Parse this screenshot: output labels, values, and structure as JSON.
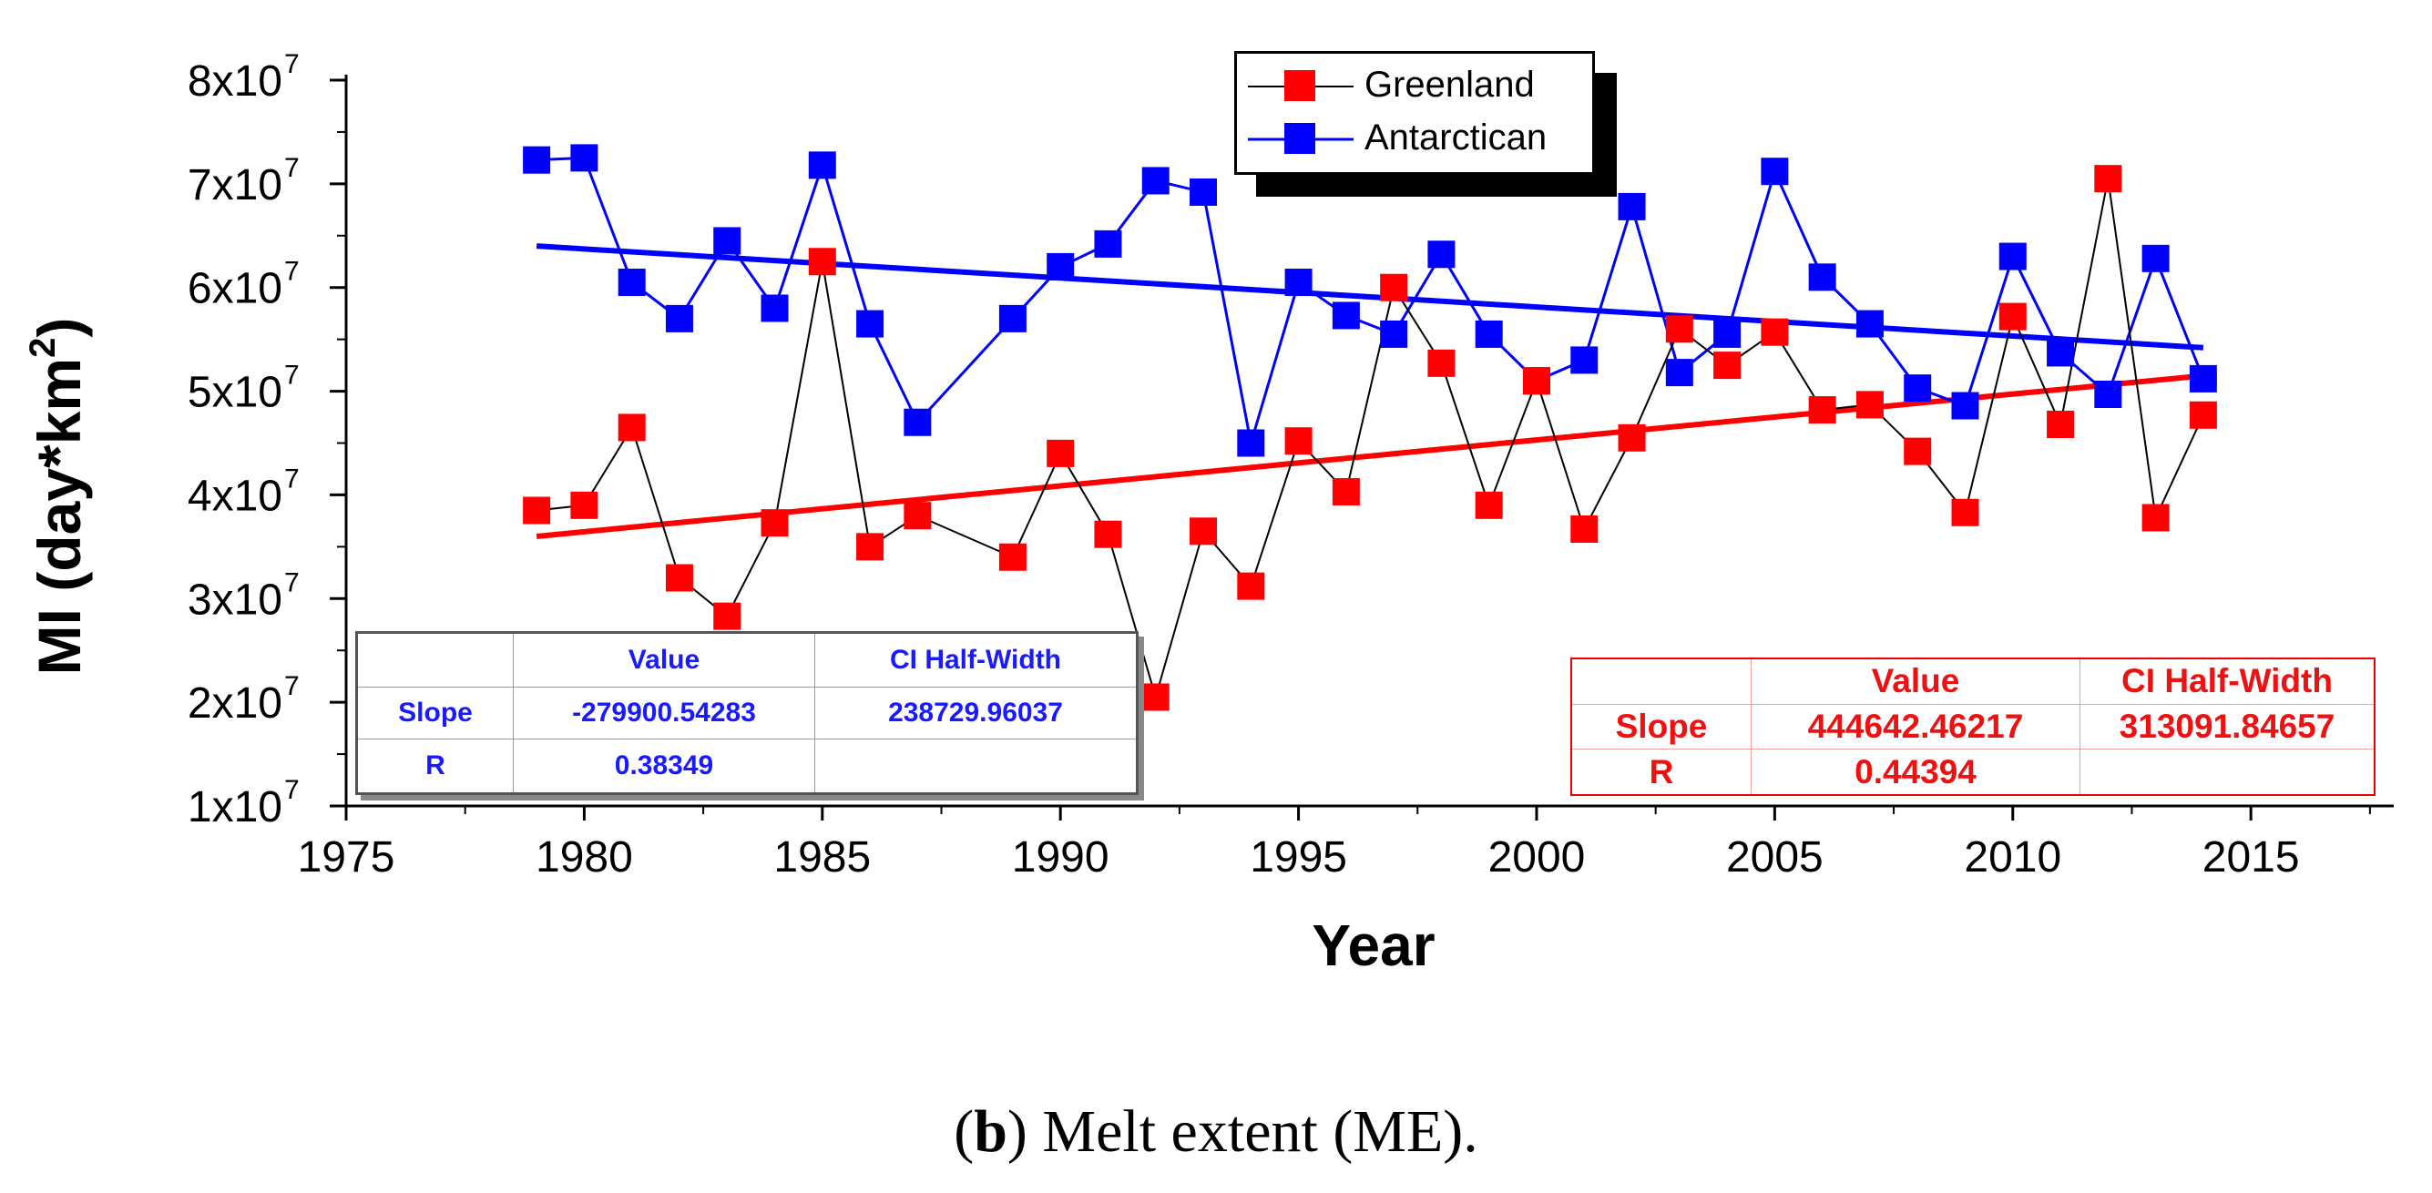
{
  "chart_data": {
    "type": "line",
    "title": "",
    "xlabel": "Year",
    "ylabel": "MI (day*km²)",
    "xlim": [
      1975,
      2018
    ],
    "ylim": [
      10000000,
      80000000
    ],
    "x_ticks": [
      1975,
      1980,
      1985,
      1990,
      1995,
      2000,
      2005,
      2010,
      2015
    ],
    "x_tick_labels": [
      "1975",
      "1980",
      "1985",
      "1990",
      "1995",
      "2000",
      "2005",
      "2010",
      "2015"
    ],
    "y_ticks": [
      10000000,
      20000000,
      30000000,
      40000000,
      50000000,
      60000000,
      70000000,
      80000000
    ],
    "y_tick_labels": [
      "1x10",
      "2x10",
      "3x10",
      "4x10",
      "5x10",
      "6x10",
      "7x10",
      "8x10"
    ],
    "y_tick_exponent": "7",
    "x": [
      1979,
      1980,
      1981,
      1982,
      1983,
      1984,
      1985,
      1986,
      1987,
      1989,
      1990,
      1991,
      1992,
      1993,
      1994,
      1995,
      1996,
      1997,
      1998,
      1999,
      2000,
      2001,
      2002,
      2003,
      2004,
      2005,
      2006,
      2007,
      2008,
      2009,
      2010,
      2011,
      2012,
      2013,
      2014
    ],
    "series": [
      {
        "name": "Greenland",
        "color": "#ff0000",
        "line_color": "#000000",
        "values": [
          38.5,
          39,
          46.5,
          32,
          28.3,
          37.3,
          62.5,
          35,
          38,
          34,
          44,
          36.2,
          20.5,
          36.5,
          31.2,
          45.2,
          40.3,
          60,
          52.7,
          39,
          51,
          36.7,
          45.5,
          56,
          52.5,
          55.7,
          48.2,
          48.7,
          44.2,
          38.3,
          57.2,
          46.8,
          70.5,
          37.8,
          47.7
        ],
        "value_scale": 1000000,
        "trend": {
          "start": [
            1979,
            36000000
          ],
          "end": [
            2014,
            51500000
          ]
        }
      },
      {
        "name": "Antarctican",
        "color": "#0000ff",
        "line_color": "#0000ff",
        "values": [
          72.3,
          72.5,
          60.5,
          57,
          64.5,
          58,
          71.8,
          56.5,
          47,
          57,
          62,
          64.2,
          70.3,
          69.2,
          45,
          60.5,
          57.3,
          55.5,
          63.2,
          55.5,
          51,
          53,
          67.8,
          51.8,
          55.5,
          71.2,
          61,
          56.5,
          50.3,
          48.6,
          63,
          53.7,
          49.7,
          62.8,
          51.2
        ],
        "value_scale": 1000000,
        "trend": {
          "start": [
            1979,
            64000000
          ],
          "end": [
            2014,
            54200000
          ]
        }
      }
    ],
    "legend": [
      "Greenland",
      "Antarctican"
    ],
    "legend_position": "top-center"
  },
  "tables": {
    "blue": {
      "header": [
        "",
        "Value",
        "CI Half-Width"
      ],
      "slope": [
        "Slope",
        "-279900.54283",
        "238729.96037"
      ],
      "r": [
        "R",
        "0.38349",
        ""
      ]
    },
    "red": {
      "header": [
        "",
        "Value",
        "CI Half-Width"
      ],
      "slope": [
        "Slope",
        "444642.46217",
        "313091.84657"
      ],
      "r": [
        "R",
        "0.44394",
        ""
      ]
    }
  },
  "caption": {
    "label": "b",
    "open": "(",
    "close": ")",
    "text": " Melt extent (ME)."
  }
}
